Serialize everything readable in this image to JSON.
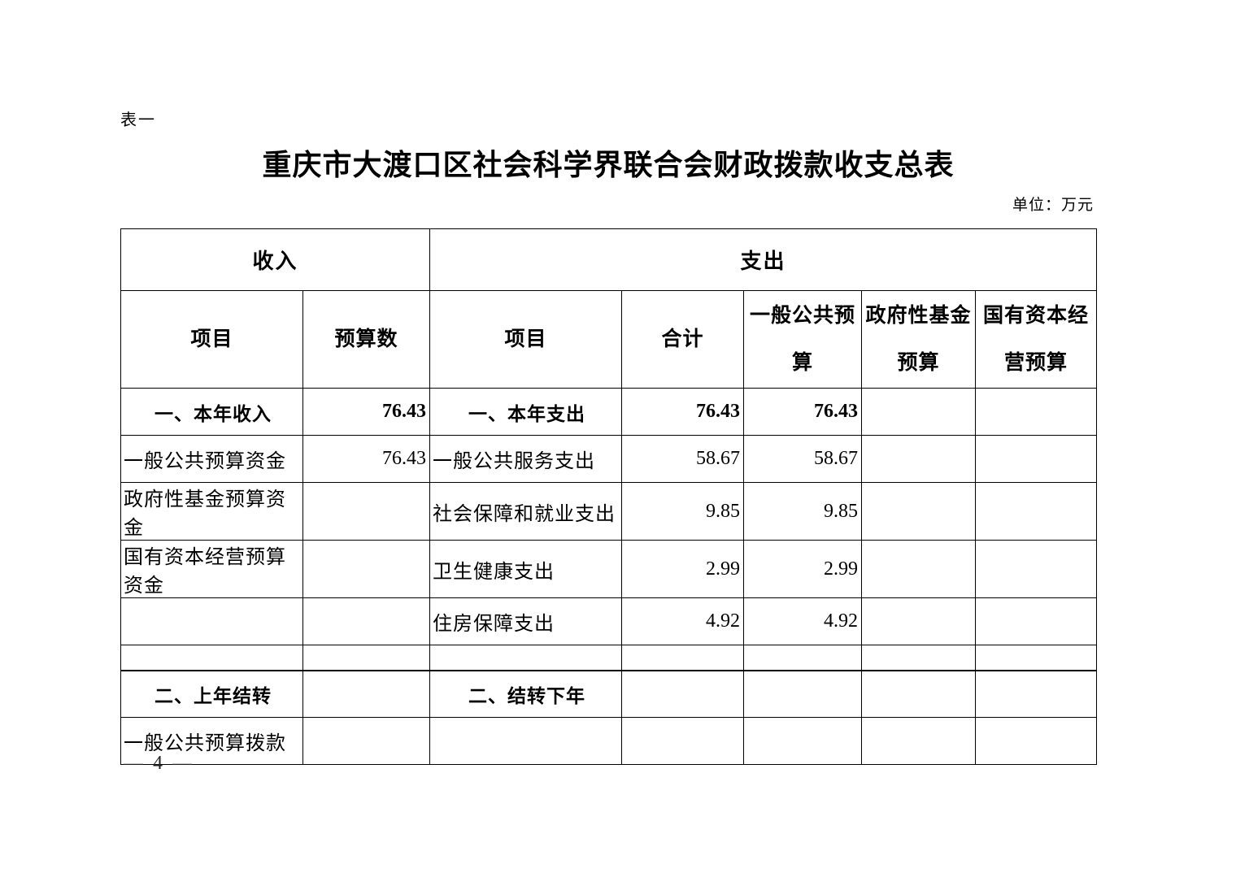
{
  "page": {
    "table_label": "表一",
    "title": "重庆市大渡口区社会科学界联合会财政拨款收支总表",
    "unit_note": "单位：万元",
    "page_number": "— 4 —"
  },
  "colors": {
    "text": "#000000",
    "background": "#ffffff",
    "table_border": "#000000"
  },
  "table": {
    "header": {
      "income_group": "收入",
      "expense_group": "支出",
      "income_item": "项目",
      "income_budget": "预算数",
      "expense_item": "项目",
      "expense_total": "合计",
      "expense_general_public_budget": "一般公共预算",
      "expense_gov_fund_budget": "政府性基金预算",
      "expense_state_capital_budget": "国有资本经营预算"
    },
    "rows": [
      {
        "bold": true,
        "income_item": "一、本年收入",
        "income_budget": "76.43",
        "expense_item": "一、本年支出",
        "total": "76.43",
        "general_public": "76.43",
        "gov_fund": "",
        "state_capital": ""
      },
      {
        "bold": false,
        "income_item": "一般公共预算资金",
        "income_budget": "76.43",
        "expense_item": "一般公共服务支出",
        "total": "58.67",
        "general_public": "58.67",
        "gov_fund": "",
        "state_capital": ""
      },
      {
        "bold": false,
        "income_item": "政府性基金预算资金",
        "income_budget": "",
        "expense_item": "社会保障和就业支出",
        "total": "9.85",
        "general_public": "9.85",
        "gov_fund": "",
        "state_capital": ""
      },
      {
        "bold": false,
        "income_item": "国有资本经营预算资金",
        "income_budget": "",
        "expense_item": "卫生健康支出",
        "total": "2.99",
        "general_public": "2.99",
        "gov_fund": "",
        "state_capital": ""
      },
      {
        "bold": false,
        "income_item": "",
        "income_budget": "",
        "expense_item": "住房保障支出",
        "total": "4.92",
        "general_public": "4.92",
        "gov_fund": "",
        "state_capital": ""
      },
      {
        "bold": false,
        "short": true,
        "income_item": "",
        "income_budget": "",
        "expense_item": "",
        "total": "",
        "general_public": "",
        "gov_fund": "",
        "state_capital": ""
      },
      {
        "bold": true,
        "section_break": true,
        "income_item": "二、上年结转",
        "income_budget": "",
        "expense_item": "二、结转下年",
        "total": "",
        "general_public": "",
        "gov_fund": "",
        "state_capital": ""
      },
      {
        "bold": false,
        "income_item": "一般公共预算拨款",
        "income_budget": "",
        "expense_item": "",
        "total": "",
        "general_public": "",
        "gov_fund": "",
        "state_capital": ""
      }
    ]
  }
}
